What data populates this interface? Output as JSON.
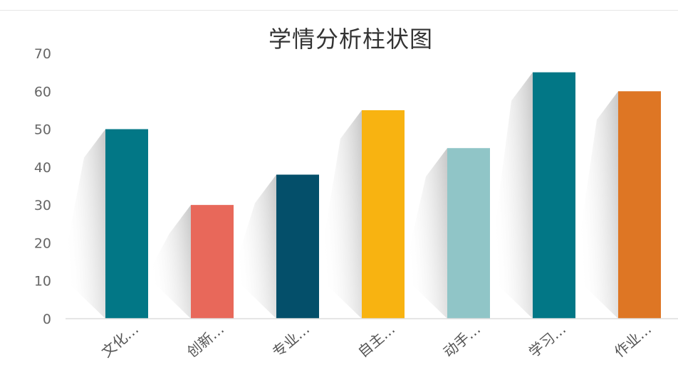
{
  "chart_data": {
    "type": "bar",
    "title": "学情分析柱状图",
    "xlabel": "",
    "ylabel": "",
    "ylim": [
      0,
      70
    ],
    "yticks": [
      0,
      10,
      20,
      30,
      40,
      50,
      60,
      70
    ],
    "grid": false,
    "categories": [
      "文化…",
      "创新…",
      "专业…",
      "自主…",
      "动手…",
      "学习…",
      "作业…"
    ],
    "values": [
      50,
      30,
      38,
      55,
      45,
      65,
      60
    ],
    "colors": [
      "#027786",
      "#e8685a",
      "#044f6a",
      "#f8b311",
      "#90c5c7",
      "#027786",
      "#de7624"
    ]
  }
}
